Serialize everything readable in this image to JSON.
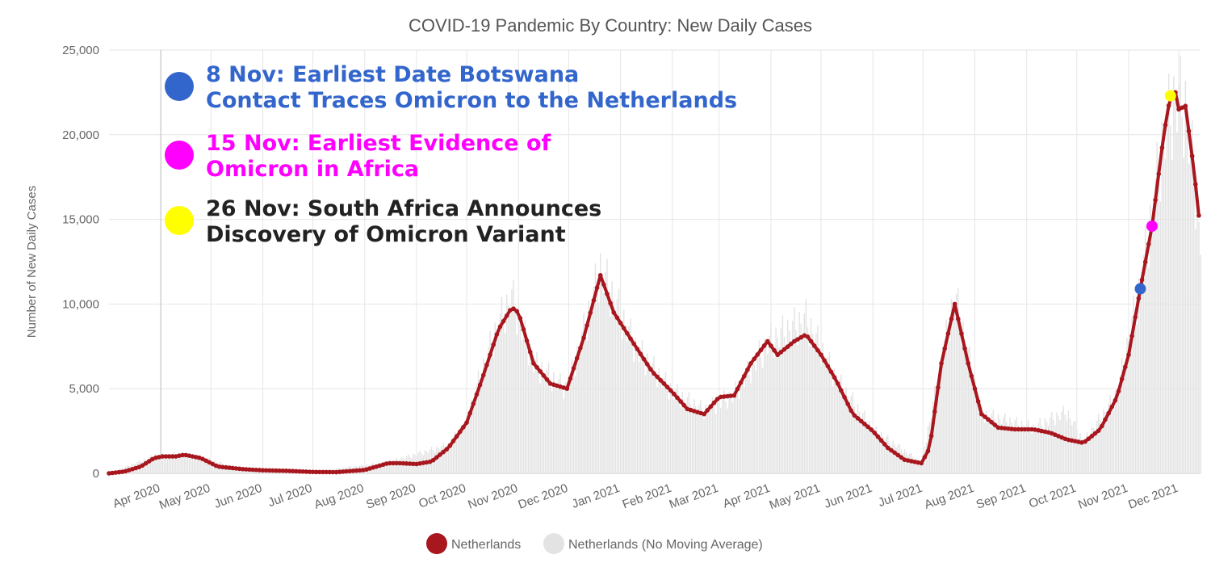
{
  "chart_data": {
    "type": "line",
    "title": "COVID-19 Pandemic By Country: New Daily Cases",
    "ylabel": "Number of New Daily Cases",
    "xlabel": "",
    "ylim": [
      0,
      25000
    ],
    "yticks": [
      0,
      5000,
      10000,
      15000,
      20000,
      25000
    ],
    "ytick_labels": [
      "0",
      "5,000",
      "10,000",
      "15,000",
      "20,000",
      "25,000"
    ],
    "x_start": "2020-03-01",
    "x_end": "2021-12-14",
    "xticks": [
      {
        "date": "2020-04-01",
        "label": "Apr 2020"
      },
      {
        "date": "2020-05-01",
        "label": "May 2020"
      },
      {
        "date": "2020-06-01",
        "label": "Jun 2020"
      },
      {
        "date": "2020-07-01",
        "label": "Jul 2020"
      },
      {
        "date": "2020-08-01",
        "label": "Aug 2020"
      },
      {
        "date": "2020-09-01",
        "label": "Sep 2020"
      },
      {
        "date": "2020-10-01",
        "label": "Oct 2020"
      },
      {
        "date": "2020-11-01",
        "label": "Nov 2020"
      },
      {
        "date": "2020-12-01",
        "label": "Dec 2020"
      },
      {
        "date": "2021-01-01",
        "label": "Jan 2021"
      },
      {
        "date": "2021-02-01",
        "label": "Feb 2021"
      },
      {
        "date": "2021-03-01",
        "label": "Mar 2021"
      },
      {
        "date": "2021-04-01",
        "label": "Apr 2021"
      },
      {
        "date": "2021-05-01",
        "label": "May 2021"
      },
      {
        "date": "2021-06-01",
        "label": "Jun 2021"
      },
      {
        "date": "2021-07-01",
        "label": "Jul 2021"
      },
      {
        "date": "2021-08-01",
        "label": "Aug 2021"
      },
      {
        "date": "2021-09-01",
        "label": "Sep 2021"
      },
      {
        "date": "2021-10-01",
        "label": "Oct 2021"
      },
      {
        "date": "2021-11-01",
        "label": "Nov 2021"
      },
      {
        "date": "2021-12-01",
        "label": "Dec 2021"
      }
    ],
    "grid": true,
    "legend_position": "bottom",
    "series": [
      {
        "name": "Netherlands",
        "color": "#a8161e",
        "style": "line-with-markers",
        "points": [
          [
            "2020-03-01",
            0
          ],
          [
            "2020-03-10",
            100
          ],
          [
            "2020-03-20",
            400
          ],
          [
            "2020-03-28",
            900
          ],
          [
            "2020-04-02",
            1000
          ],
          [
            "2020-04-10",
            1000
          ],
          [
            "2020-04-15",
            1100
          ],
          [
            "2020-04-25",
            900
          ],
          [
            "2020-05-05",
            400
          ],
          [
            "2020-05-20",
            250
          ],
          [
            "2020-06-01",
            180
          ],
          [
            "2020-06-15",
            150
          ],
          [
            "2020-07-01",
            80
          ],
          [
            "2020-07-15",
            70
          ],
          [
            "2020-08-01",
            200
          ],
          [
            "2020-08-15",
            600
          ],
          [
            "2020-08-22",
            600
          ],
          [
            "2020-09-01",
            550
          ],
          [
            "2020-09-10",
            700
          ],
          [
            "2020-09-20",
            1500
          ],
          [
            "2020-10-01",
            3000
          ],
          [
            "2020-10-10",
            5500
          ],
          [
            "2020-10-20",
            8500
          ],
          [
            "2020-10-28",
            9800
          ],
          [
            "2020-11-01",
            9500
          ],
          [
            "2020-11-10",
            6500
          ],
          [
            "2020-11-20",
            5300
          ],
          [
            "2020-11-30",
            5000
          ],
          [
            "2020-12-10",
            8000
          ],
          [
            "2020-12-20",
            11700
          ],
          [
            "2020-12-28",
            9500
          ],
          [
            "2021-01-10",
            7500
          ],
          [
            "2021-01-20",
            6000
          ],
          [
            "2021-02-01",
            4800
          ],
          [
            "2021-02-10",
            3800
          ],
          [
            "2021-02-20",
            3500
          ],
          [
            "2021-03-01",
            4500
          ],
          [
            "2021-03-10",
            4600
          ],
          [
            "2021-03-20",
            6500
          ],
          [
            "2021-03-30",
            7800
          ],
          [
            "2021-04-05",
            7000
          ],
          [
            "2021-04-15",
            7800
          ],
          [
            "2021-04-22",
            8200
          ],
          [
            "2021-05-01",
            7000
          ],
          [
            "2021-05-10",
            5500
          ],
          [
            "2021-05-20",
            3500
          ],
          [
            "2021-06-01",
            2500
          ],
          [
            "2021-06-10",
            1500
          ],
          [
            "2021-06-20",
            800
          ],
          [
            "2021-06-30",
            600
          ],
          [
            "2021-07-05",
            1500
          ],
          [
            "2021-07-12",
            6500
          ],
          [
            "2021-07-20",
            10000
          ],
          [
            "2021-07-28",
            6500
          ],
          [
            "2021-08-05",
            3500
          ],
          [
            "2021-08-15",
            2700
          ],
          [
            "2021-08-25",
            2600
          ],
          [
            "2021-09-05",
            2600
          ],
          [
            "2021-09-15",
            2400
          ],
          [
            "2021-09-25",
            2000
          ],
          [
            "2021-10-05",
            1800
          ],
          [
            "2021-10-15",
            2600
          ],
          [
            "2021-10-25",
            4500
          ],
          [
            "2021-11-01",
            7000
          ],
          [
            "2021-11-08",
            10900
          ],
          [
            "2021-11-15",
            14600
          ],
          [
            "2021-11-22",
            20000
          ],
          [
            "2021-11-26",
            22300
          ],
          [
            "2021-11-29",
            22500
          ],
          [
            "2021-12-01",
            21500
          ],
          [
            "2021-12-05",
            21700
          ],
          [
            "2021-12-10",
            18000
          ],
          [
            "2021-12-14",
            14300
          ]
        ]
      },
      {
        "name": "Netherlands (No Moving Average)",
        "color": "#e3e3e3",
        "style": "bars",
        "points": [
          [
            "2020-03-01",
            0
          ],
          [
            "2020-03-28",
            1100
          ],
          [
            "2020-04-10",
            1200
          ],
          [
            "2020-04-25",
            1000
          ],
          [
            "2020-05-20",
            300
          ],
          [
            "2020-07-01",
            100
          ],
          [
            "2020-08-15",
            700
          ],
          [
            "2020-09-20",
            1800
          ],
          [
            "2020-10-01",
            3300
          ],
          [
            "2020-10-10",
            6500
          ],
          [
            "2020-10-20",
            9500
          ],
          [
            "2020-10-28",
            11200
          ],
          [
            "2020-11-10",
            7000
          ],
          [
            "2020-11-30",
            5300
          ],
          [
            "2020-12-10",
            9000
          ],
          [
            "2020-12-20",
            13000
          ],
          [
            "2021-01-10",
            8000
          ],
          [
            "2021-02-01",
            5200
          ],
          [
            "2021-02-20",
            4000
          ],
          [
            "2021-03-10",
            5000
          ],
          [
            "2021-03-30",
            8300
          ],
          [
            "2021-04-22",
            9800
          ],
          [
            "2021-05-10",
            6000
          ],
          [
            "2021-06-01",
            2800
          ],
          [
            "2021-06-30",
            700
          ],
          [
            "2021-07-12",
            7000
          ],
          [
            "2021-07-20",
            11400
          ],
          [
            "2021-08-05",
            3800
          ],
          [
            "2021-09-05",
            2900
          ],
          [
            "2021-09-25",
            3900
          ],
          [
            "2021-10-05",
            2000
          ],
          [
            "2021-10-25",
            5000
          ],
          [
            "2021-11-08",
            12000
          ],
          [
            "2021-11-15",
            16500
          ],
          [
            "2021-11-22",
            21500
          ],
          [
            "2021-11-29",
            23800
          ],
          [
            "2021-12-05",
            23200
          ],
          [
            "2021-12-10",
            19000
          ],
          [
            "2021-12-14",
            15200
          ]
        ]
      }
    ],
    "highlighted_points": [
      {
        "date": "2021-11-08",
        "value": 10900,
        "color": "#3366cc"
      },
      {
        "date": "2021-11-15",
        "value": 14600,
        "color": "#ff00ff"
      },
      {
        "date": "2021-11-26",
        "value": 22300,
        "color": "#ffff00"
      }
    ],
    "annotations": [
      {
        "color": "#3366cc",
        "text_color": "#3366cc",
        "lines": [
          "8 Nov: Earliest Date Botswana",
          "Contact Traces Omicron to the Netherlands"
        ]
      },
      {
        "color": "#ff00ff",
        "text_color": "#ff00ff",
        "lines": [
          "15 Nov: Earliest Evidence of",
          "Omicron in Africa"
        ]
      },
      {
        "color": "#ffff00",
        "text_color": "#222222",
        "lines": [
          "26 Nov: South Africa Announces",
          "Discovery of Omicron Variant"
        ]
      }
    ],
    "legend": [
      {
        "label": "Netherlands",
        "color": "#a8161e"
      },
      {
        "label": "Netherlands (No Moving Average)",
        "color": "#e3e3e3"
      }
    ]
  }
}
